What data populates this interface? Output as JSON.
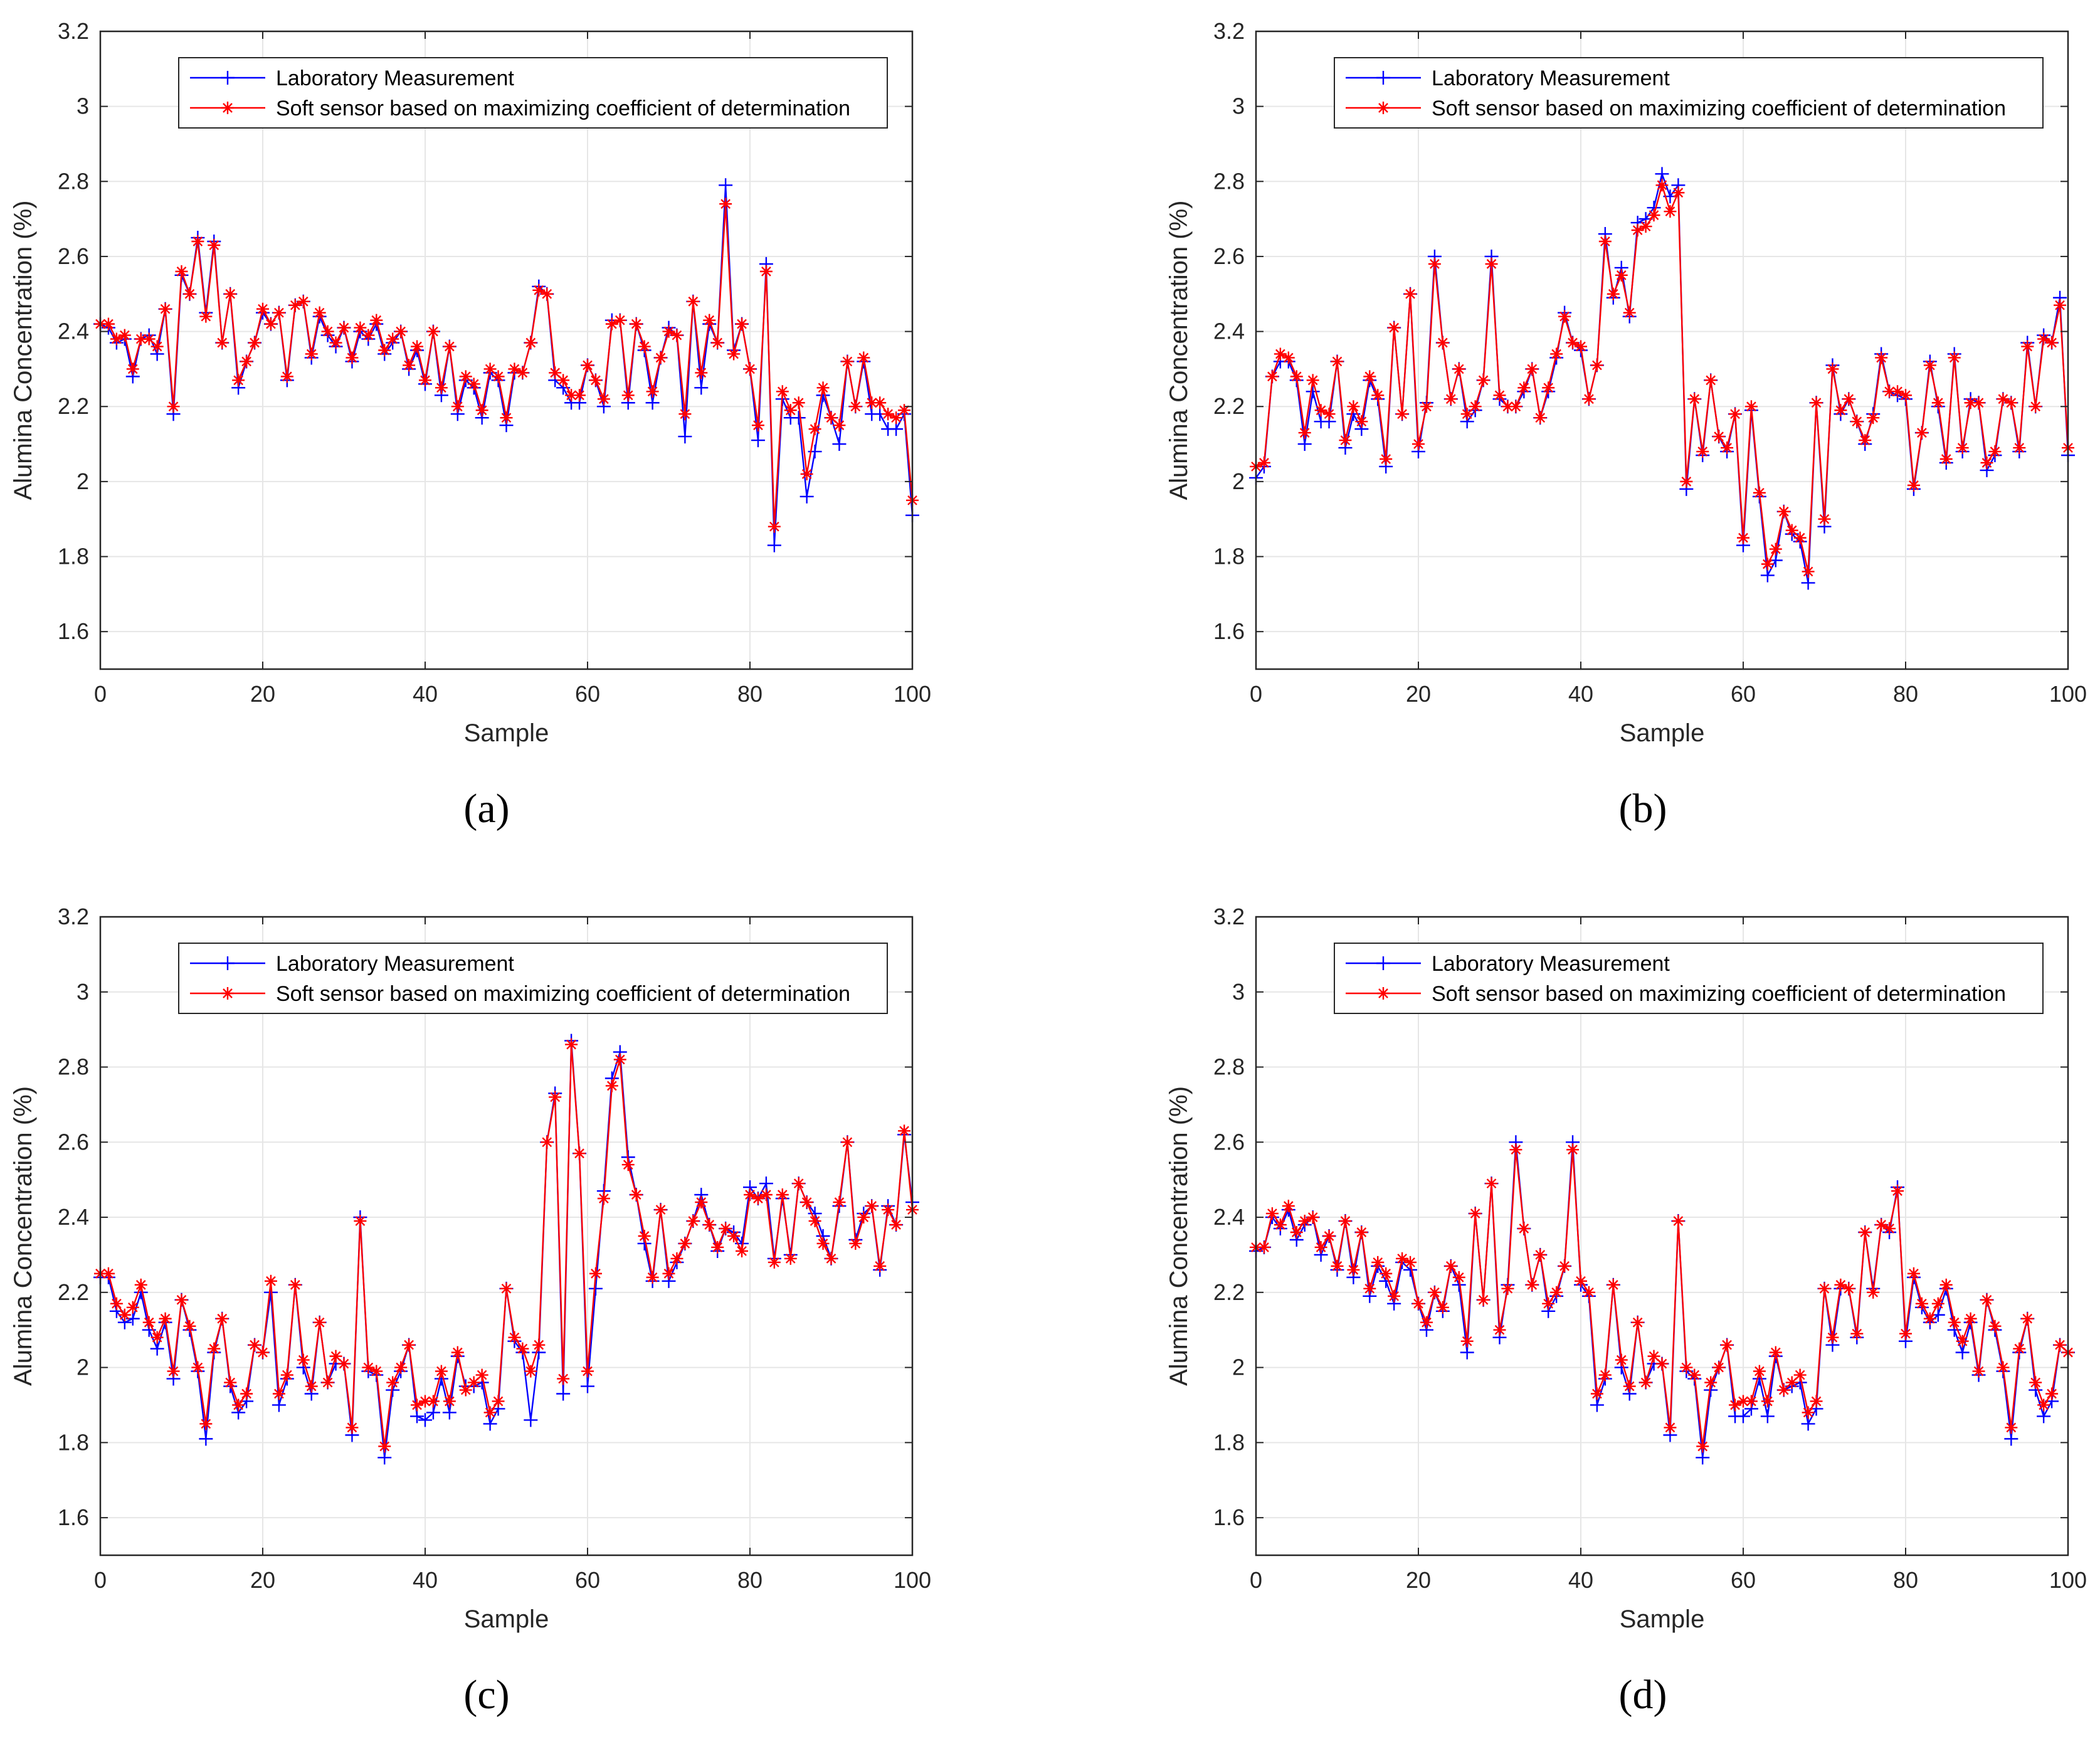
{
  "colors": {
    "measured": "#0000ff",
    "predicted": "#ff0000",
    "grid": "#e6e6e6",
    "axis": "#262626"
  },
  "chart_data": [
    {
      "type": "line",
      "panel": "a",
      "caption": "(a)",
      "xlabel": "Sample",
      "ylabel": "Alumina Concentration (%)",
      "xlim": [
        0,
        100
      ],
      "ylim": [
        1.5,
        3.2
      ],
      "xticks": [
        0,
        20,
        40,
        60,
        80,
        100
      ],
      "yticks": [
        "1.6",
        "1.8",
        "2",
        "2.2",
        "2.4",
        "2.6",
        "2.8",
        "3",
        "3.2"
      ],
      "legend": [
        "Laboratory Measurement",
        "Soft sensor based on maximizing coefficient of determination"
      ],
      "legend_position": "top",
      "grid": true,
      "series": [
        {
          "name": "Laboratory Measurement",
          "marker": "+",
          "values": [
            2.42,
            2.41,
            2.37,
            2.38,
            2.28,
            2.38,
            2.39,
            2.34,
            2.46,
            2.18,
            2.55,
            2.5,
            2.65,
            2.45,
            2.64,
            2.37,
            2.5,
            2.25,
            2.32,
            2.37,
            2.45,
            2.42,
            2.45,
            2.27,
            2.47,
            2.48,
            2.33,
            2.44,
            2.39,
            2.36,
            2.41,
            2.32,
            2.4,
            2.38,
            2.42,
            2.34,
            2.37,
            2.4,
            2.3,
            2.35,
            2.26,
            2.4,
            2.23,
            2.36,
            2.18,
            2.27,
            2.25,
            2.17,
            2.29,
            2.27,
            2.15,
            2.29,
            2.29,
            2.37,
            2.52,
            2.5,
            2.27,
            2.25,
            2.21,
            2.21,
            2.31,
            2.27,
            2.2,
            2.43,
            2.43,
            2.21,
            2.42,
            2.35,
            2.21,
            2.33,
            2.41,
            2.39,
            2.12,
            2.48,
            2.25,
            2.42,
            2.37,
            2.79,
            2.35,
            2.42,
            2.3,
            2.11,
            2.58,
            1.83,
            2.22,
            2.17,
            2.17,
            1.96,
            2.08,
            2.23,
            2.17,
            2.1,
            2.32,
            2.2,
            2.32,
            2.18,
            2.18,
            2.14,
            2.14,
            2.18,
            1.91
          ]
        },
        {
          "name": "Soft sensor based on maximizing coefficient of determination",
          "marker": "*",
          "values": [
            2.42,
            2.42,
            2.38,
            2.39,
            2.3,
            2.38,
            2.38,
            2.36,
            2.46,
            2.2,
            2.56,
            2.5,
            2.64,
            2.44,
            2.63,
            2.37,
            2.5,
            2.27,
            2.32,
            2.37,
            2.46,
            2.42,
            2.45,
            2.28,
            2.47,
            2.48,
            2.34,
            2.45,
            2.4,
            2.37,
            2.41,
            2.33,
            2.41,
            2.39,
            2.43,
            2.35,
            2.38,
            2.4,
            2.31,
            2.36,
            2.27,
            2.4,
            2.25,
            2.36,
            2.2,
            2.28,
            2.26,
            2.19,
            2.3,
            2.28,
            2.17,
            2.3,
            2.29,
            2.37,
            2.51,
            2.5,
            2.29,
            2.27,
            2.23,
            2.23,
            2.31,
            2.27,
            2.22,
            2.42,
            2.43,
            2.23,
            2.42,
            2.36,
            2.24,
            2.33,
            2.4,
            2.39,
            2.18,
            2.48,
            2.29,
            2.43,
            2.37,
            2.74,
            2.34,
            2.42,
            2.3,
            2.15,
            2.56,
            1.88,
            2.24,
            2.19,
            2.21,
            2.02,
            2.14,
            2.25,
            2.17,
            2.15,
            2.32,
            2.2,
            2.33,
            2.21,
            2.21,
            2.18,
            2.17,
            2.19,
            1.95
          ]
        }
      ]
    },
    {
      "type": "line",
      "panel": "b",
      "caption": "(b)",
      "xlabel": "Sample",
      "ylabel": "Alumina Concentration (%)",
      "xlim": [
        0,
        100
      ],
      "ylim": [
        1.5,
        3.2
      ],
      "xticks": [
        0,
        20,
        40,
        60,
        80,
        100
      ],
      "yticks": [
        "1.6",
        "1.8",
        "2",
        "2.2",
        "2.4",
        "2.6",
        "2.8",
        "3",
        "3.2"
      ],
      "legend": [
        "Laboratory Measurement",
        "Soft sensor based on maximizing coefficient of determination"
      ],
      "legend_position": "top",
      "grid": true,
      "series": [
        {
          "name": "Laboratory Measurement",
          "marker": "+",
          "values": [
            2.01,
            2.04,
            2.28,
            2.32,
            2.32,
            2.27,
            2.1,
            2.24,
            2.16,
            2.16,
            2.32,
            2.09,
            2.18,
            2.14,
            2.27,
            2.22,
            2.04,
            2.41,
            2.18,
            2.5,
            2.08,
            2.21,
            2.6,
            2.37,
            2.22,
            2.3,
            2.16,
            2.19,
            2.27,
            2.6,
            2.22,
            2.2,
            2.2,
            2.24,
            2.3,
            2.17,
            2.24,
            2.33,
            2.45,
            2.37,
            2.35,
            2.22,
            2.31,
            2.66,
            2.49,
            2.57,
            2.44,
            2.69,
            2.7,
            2.73,
            2.82,
            2.76,
            2.79,
            1.98,
            2.22,
            2.07,
            2.27,
            2.12,
            2.08,
            2.18,
            1.83,
            2.19,
            1.96,
            1.75,
            1.79,
            1.92,
            1.86,
            1.84,
            1.73,
            2.21,
            1.88,
            2.31,
            2.18,
            2.22,
            2.16,
            2.1,
            2.18,
            2.34,
            2.24,
            2.23,
            2.22,
            1.98,
            2.13,
            2.32,
            2.2,
            2.05,
            2.34,
            2.08,
            2.22,
            2.21,
            2.03,
            2.07,
            2.22,
            2.21,
            2.08,
            2.37,
            2.2,
            2.39,
            2.37,
            2.49,
            2.07
          ]
        },
        {
          "name": "Soft sensor based on maximizing coefficient of determination",
          "marker": "*",
          "values": [
            2.04,
            2.05,
            2.28,
            2.34,
            2.33,
            2.28,
            2.13,
            2.27,
            2.19,
            2.18,
            2.32,
            2.11,
            2.2,
            2.16,
            2.28,
            2.23,
            2.06,
            2.41,
            2.18,
            2.5,
            2.1,
            2.2,
            2.58,
            2.37,
            2.22,
            2.3,
            2.18,
            2.2,
            2.27,
            2.58,
            2.23,
            2.2,
            2.2,
            2.25,
            2.3,
            2.17,
            2.25,
            2.34,
            2.44,
            2.37,
            2.36,
            2.22,
            2.31,
            2.64,
            2.5,
            2.55,
            2.45,
            2.67,
            2.68,
            2.71,
            2.79,
            2.72,
            2.77,
            2.0,
            2.22,
            2.08,
            2.27,
            2.12,
            2.09,
            2.18,
            1.85,
            2.2,
            1.97,
            1.78,
            1.82,
            1.92,
            1.87,
            1.85,
            1.76,
            2.21,
            1.9,
            2.3,
            2.19,
            2.22,
            2.16,
            2.11,
            2.17,
            2.33,
            2.24,
            2.24,
            2.23,
            1.99,
            2.13,
            2.31,
            2.21,
            2.06,
            2.33,
            2.09,
            2.21,
            2.21,
            2.05,
            2.08,
            2.22,
            2.21,
            2.09,
            2.36,
            2.2,
            2.38,
            2.37,
            2.47,
            2.09
          ]
        }
      ]
    },
    {
      "type": "line",
      "panel": "c",
      "caption": "(c)",
      "xlabel": "Sample",
      "ylabel": "Alumina Concentration (%)",
      "xlim": [
        0,
        100
      ],
      "ylim": [
        1.5,
        3.2
      ],
      "xticks": [
        0,
        20,
        40,
        60,
        80,
        100
      ],
      "yticks": [
        "1.6",
        "1.8",
        "2",
        "2.2",
        "2.4",
        "2.6",
        "2.8",
        "3",
        "3.2"
      ],
      "legend": [
        "Laboratory Measurement",
        "Soft sensor based on maximizing coefficient of determination"
      ],
      "legend_position": "top",
      "grid": true,
      "series": [
        {
          "name": "Laboratory Measurement",
          "marker": "+",
          "values": [
            2.24,
            2.24,
            2.15,
            2.12,
            2.13,
            2.2,
            2.1,
            2.05,
            2.12,
            1.97,
            2.18,
            2.1,
            1.99,
            1.81,
            2.04,
            2.13,
            1.95,
            1.88,
            1.91,
            2.06,
            2.04,
            2.2,
            1.9,
            1.97,
            2.22,
            2.0,
            1.93,
            2.12,
            1.96,
            2.01,
            2.01,
            1.82,
            2.4,
            1.99,
            1.98,
            1.76,
            1.94,
            1.99,
            2.06,
            1.87,
            1.86,
            1.88,
            1.97,
            1.88,
            2.03,
            1.95,
            1.95,
            1.96,
            1.85,
            1.89,
            2.21,
            2.07,
            2.04,
            1.86,
            2.04,
            2.6,
            2.73,
            1.93,
            2.87,
            2.57,
            1.95,
            2.21,
            2.47,
            2.77,
            2.84,
            2.56,
            2.46,
            2.33,
            2.23,
            2.42,
            2.23,
            2.28,
            2.33,
            2.39,
            2.46,
            2.38,
            2.31,
            2.37,
            2.36,
            2.33,
            2.48,
            2.45,
            2.49,
            2.29,
            2.45,
            2.3,
            2.49,
            2.44,
            2.41,
            2.35,
            2.29,
            2.43,
            2.6,
            2.34,
            2.41,
            2.43,
            2.26,
            2.43,
            2.38,
            2.62,
            2.44
          ]
        },
        {
          "name": "Soft sensor based on maximizing coefficient of determination",
          "marker": "*",
          "values": [
            2.25,
            2.25,
            2.17,
            2.14,
            2.16,
            2.22,
            2.12,
            2.08,
            2.13,
            1.99,
            2.18,
            2.11,
            2.0,
            1.85,
            2.05,
            2.13,
            1.96,
            1.9,
            1.93,
            2.06,
            2.04,
            2.23,
            1.93,
            1.98,
            2.22,
            2.02,
            1.95,
            2.12,
            1.96,
            2.03,
            2.01,
            1.84,
            2.39,
            2.0,
            1.99,
            1.79,
            1.96,
            2.0,
            2.06,
            1.9,
            1.91,
            1.91,
            1.99,
            1.91,
            2.04,
            1.94,
            1.96,
            1.98,
            1.88,
            1.91,
            2.21,
            2.08,
            2.05,
            1.99,
            2.06,
            2.6,
            2.72,
            1.97,
            2.86,
            2.57,
            1.99,
            2.25,
            2.45,
            2.75,
            2.82,
            2.54,
            2.46,
            2.35,
            2.24,
            2.42,
            2.25,
            2.29,
            2.33,
            2.39,
            2.44,
            2.38,
            2.32,
            2.37,
            2.35,
            2.31,
            2.46,
            2.45,
            2.46,
            2.28,
            2.46,
            2.29,
            2.49,
            2.44,
            2.39,
            2.33,
            2.29,
            2.44,
            2.6,
            2.33,
            2.4,
            2.43,
            2.27,
            2.42,
            2.38,
            2.63,
            2.42
          ]
        }
      ]
    },
    {
      "type": "line",
      "panel": "d",
      "caption": "(d)",
      "xlabel": "Sample",
      "ylabel": "Alumina Concentration (%)",
      "xlim": [
        0,
        100
      ],
      "ylim": [
        1.5,
        3.2
      ],
      "xticks": [
        0,
        20,
        40,
        60,
        80,
        100
      ],
      "yticks": [
        "1.6",
        "1.8",
        "2",
        "2.2",
        "2.4",
        "2.6",
        "2.8",
        "3",
        "3.2"
      ],
      "legend": [
        "Laboratory Measurement",
        "Soft sensor based on maximizing coefficient of determination"
      ],
      "legend_position": "top",
      "grid": true,
      "series": [
        {
          "name": "Laboratory Measurement",
          "marker": "+",
          "values": [
            2.31,
            2.32,
            2.4,
            2.37,
            2.42,
            2.34,
            2.38,
            2.4,
            2.3,
            2.35,
            2.26,
            2.39,
            2.24,
            2.36,
            2.19,
            2.27,
            2.23,
            2.17,
            2.28,
            2.26,
            2.17,
            2.1,
            2.2,
            2.15,
            2.27,
            2.22,
            2.04,
            2.41,
            2.18,
            2.49,
            2.08,
            2.22,
            2.6,
            2.37,
            2.22,
            2.3,
            2.15,
            2.19,
            2.27,
            2.6,
            2.22,
            2.19,
            1.9,
            1.97,
            2.22,
            2.0,
            1.93,
            2.12,
            1.96,
            2.01,
            2.01,
            1.82,
            2.39,
            1.99,
            1.97,
            1.76,
            1.94,
            2.0,
            2.06,
            1.87,
            1.87,
            1.89,
            1.97,
            1.87,
            2.03,
            1.94,
            1.95,
            1.96,
            1.85,
            1.89,
            2.21,
            2.06,
            2.21,
            2.21,
            2.08,
            2.36,
            2.21,
            2.38,
            2.36,
            2.48,
            2.07,
            2.24,
            2.16,
            2.12,
            2.14,
            2.21,
            2.1,
            2.04,
            2.12,
            1.98,
            2.18,
            2.1,
            1.99,
            1.81,
            2.04,
            2.13,
            1.94,
            1.87,
            1.91,
            2.06,
            2.04
          ]
        },
        {
          "name": "Soft sensor based on maximizing coefficient of determination",
          "marker": "*",
          "values": [
            2.32,
            2.32,
            2.41,
            2.38,
            2.43,
            2.36,
            2.39,
            2.4,
            2.32,
            2.35,
            2.27,
            2.39,
            2.26,
            2.36,
            2.21,
            2.28,
            2.25,
            2.19,
            2.29,
            2.28,
            2.17,
            2.12,
            2.2,
            2.16,
            2.27,
            2.24,
            2.07,
            2.41,
            2.18,
            2.49,
            2.1,
            2.21,
            2.58,
            2.37,
            2.22,
            2.3,
            2.17,
            2.2,
            2.27,
            2.58,
            2.23,
            2.2,
            1.93,
            1.98,
            2.22,
            2.02,
            1.95,
            2.12,
            1.96,
            2.03,
            2.01,
            1.84,
            2.39,
            2.0,
            1.98,
            1.79,
            1.96,
            2.0,
            2.06,
            1.9,
            1.91,
            1.91,
            1.99,
            1.91,
            2.04,
            1.94,
            1.96,
            1.98,
            1.88,
            1.91,
            2.21,
            2.08,
            2.22,
            2.21,
            2.09,
            2.36,
            2.2,
            2.38,
            2.37,
            2.47,
            2.09,
            2.25,
            2.17,
            2.13,
            2.17,
            2.22,
            2.12,
            2.07,
            2.13,
            1.99,
            2.18,
            2.11,
            2.0,
            1.84,
            2.05,
            2.13,
            1.96,
            1.9,
            1.93,
            2.06,
            2.04
          ]
        }
      ]
    }
  ]
}
